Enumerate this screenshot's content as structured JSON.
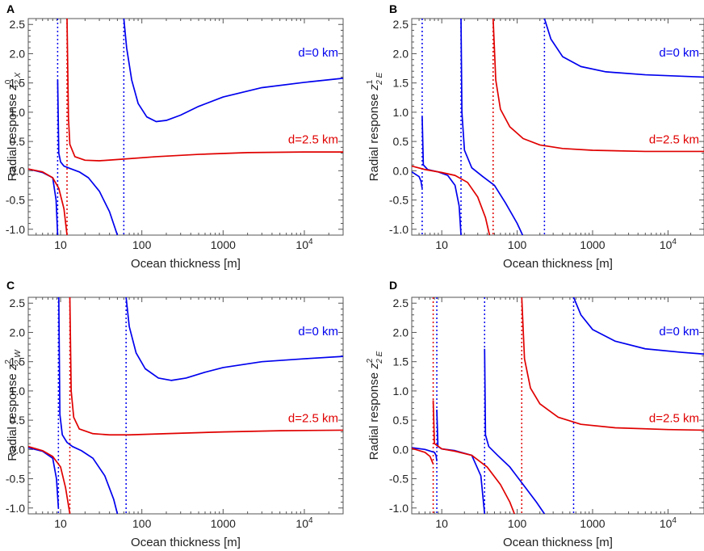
{
  "colors": {
    "d0": "#0000ee",
    "d25": "#e00000",
    "axis": "#555555"
  },
  "chart_data": [
    {
      "panel": "A",
      "type": "line",
      "ylabel_prefix": "Radial response ",
      "ylabel_sym": "z",
      "ylabel_sup": "0",
      "ylabel_sub": "2 X",
      "xlabel": "Ocean thickness [m]",
      "xscale": "log",
      "xlim": [
        4,
        30000
      ],
      "ylim": [
        -1.1,
        2.6
      ],
      "xticks": [
        {
          "v": 10,
          "t": "10"
        },
        {
          "v": 100,
          "t": "100"
        },
        {
          "v": 1000,
          "t": "1000"
        },
        {
          "v": 10000,
          "t": "10",
          "sup": "4"
        }
      ],
      "yticks": [
        "-1.0",
        "-0.5",
        "0.0",
        "0.5",
        "1.0",
        "1.5",
        "2.0",
        "2.5"
      ],
      "series": [
        {
          "name": "d=0 km",
          "label_value": 1.95,
          "asymptotes": [
            9.2,
            60
          ],
          "segments": [
            [
              [
                4,
                0.03
              ],
              [
                6,
                -0.03
              ],
              [
                8,
                -0.12
              ],
              [
                8.8,
                -0.5
              ],
              [
                9.2,
                -1.1
              ]
            ],
            [
              [
                9.2,
                1.55
              ],
              [
                9.5,
                0.3
              ],
              [
                10,
                0.15
              ],
              [
                11,
                0.08
              ],
              [
                13,
                0.04
              ],
              [
                17,
                -0.02
              ],
              [
                22,
                -0.12
              ],
              [
                30,
                -0.35
              ],
              [
                40,
                -0.7
              ],
              [
                50,
                -1.1
              ]
            ],
            [
              [
                60,
                2.6
              ],
              [
                65,
                2.1
              ],
              [
                75,
                1.55
              ],
              [
                90,
                1.15
              ],
              [
                115,
                0.92
              ],
              [
                150,
                0.84
              ],
              [
                200,
                0.86
              ],
              [
                300,
                0.95
              ],
              [
                500,
                1.1
              ],
              [
                1000,
                1.26
              ],
              [
                3000,
                1.42
              ],
              [
                10000,
                1.51
              ],
              [
                30000,
                1.58
              ]
            ]
          ]
        },
        {
          "name": "d=2.5 km",
          "label_value": 0.47,
          "asymptotes": [
            12
          ],
          "segments": [
            [
              [
                4,
                0.03
              ],
              [
                6,
                -0.02
              ],
              [
                8,
                -0.12
              ],
              [
                9.5,
                -0.3
              ],
              [
                11,
                -0.65
              ],
              [
                12,
                -1.1
              ]
            ],
            [
              [
                12,
                2.6
              ],
              [
                12.5,
                0.9
              ],
              [
                13,
                0.45
              ],
              [
                15,
                0.24
              ],
              [
                20,
                0.18
              ],
              [
                30,
                0.17
              ],
              [
                60,
                0.2
              ],
              [
                150,
                0.24
              ],
              [
                500,
                0.28
              ],
              [
                2000,
                0.31
              ],
              [
                10000,
                0.32
              ],
              [
                30000,
                0.32
              ]
            ]
          ]
        }
      ]
    },
    {
      "panel": "B",
      "type": "line",
      "ylabel_prefix": "Radial response ",
      "ylabel_sym": "z",
      "ylabel_sup": "1",
      "ylabel_sub": "2 E",
      "xlabel": "Ocean thickness [m]",
      "xscale": "log",
      "xlim": [
        4,
        30000
      ],
      "ylim": [
        -1.1,
        2.6
      ],
      "xticks": [
        {
          "v": 10,
          "t": "10"
        },
        {
          "v": 100,
          "t": "100"
        },
        {
          "v": 1000,
          "t": "1000"
        },
        {
          "v": 10000,
          "t": "10",
          "sup": "4"
        }
      ],
      "yticks": [
        "-1.0",
        "-0.5",
        "0.0",
        "0.5",
        "1.0",
        "1.5",
        "2.0",
        "2.5"
      ],
      "series": [
        {
          "name": "d=0 km",
          "label_value": 1.95,
          "asymptotes": [
            5.5,
            18,
            230
          ],
          "segments": [
            [
              [
                4,
                -0.02
              ],
              [
                5,
                -0.1
              ],
              [
                5.3,
                -0.18
              ],
              [
                5.5,
                -0.3
              ]
            ],
            [
              [
                5.5,
                0.92
              ],
              [
                5.7,
                0.1
              ],
              [
                6.5,
                0.02
              ],
              [
                9,
                -0.02
              ],
              [
                12,
                -0.08
              ],
              [
                15,
                -0.25
              ],
              [
                17,
                -0.6
              ],
              [
                18,
                -1.1
              ]
            ],
            [
              [
                18,
                2.6
              ],
              [
                18.5,
                1.0
              ],
              [
                20,
                0.35
              ],
              [
                25,
                0.05
              ],
              [
                35,
                -0.1
              ],
              [
                50,
                -0.25
              ],
              [
                70,
                -0.55
              ],
              [
                100,
                -0.9
              ],
              [
                118,
                -1.1
              ]
            ],
            [
              [
                230,
                2.6
              ],
              [
                280,
                2.25
              ],
              [
                400,
                1.95
              ],
              [
                700,
                1.78
              ],
              [
                1500,
                1.69
              ],
              [
                5000,
                1.64
              ],
              [
                30000,
                1.6
              ]
            ]
          ]
        },
        {
          "name": "d=2.5 km",
          "label_value": 0.47,
          "asymptotes": [
            48
          ],
          "segments": [
            [
              [
                4,
                0.08
              ],
              [
                6,
                0.02
              ],
              [
                10,
                -0.03
              ],
              [
                15,
                -0.08
              ],
              [
                22,
                -0.2
              ],
              [
                30,
                -0.45
              ],
              [
                38,
                -0.8
              ],
              [
                43,
                -1.1
              ]
            ],
            [
              [
                48,
                2.6
              ],
              [
                52,
                1.55
              ],
              [
                60,
                1.05
              ],
              [
                80,
                0.75
              ],
              [
                120,
                0.55
              ],
              [
                200,
                0.44
              ],
              [
                400,
                0.38
              ],
              [
                1000,
                0.35
              ],
              [
                5000,
                0.33
              ],
              [
                30000,
                0.33
              ]
            ]
          ]
        }
      ]
    },
    {
      "panel": "C",
      "type": "line",
      "ylabel_prefix": "Radial response ",
      "ylabel_sym": "z",
      "ylabel_sup": "2",
      "ylabel_sub": "2 W",
      "xlabel": "Ocean thickness [m]",
      "xscale": "log",
      "xlim": [
        4,
        30000
      ],
      "ylim": [
        -1.1,
        2.6
      ],
      "xticks": [
        {
          "v": 10,
          "t": "10"
        },
        {
          "v": 100,
          "t": "100"
        },
        {
          "v": 1000,
          "t": "1000"
        },
        {
          "v": 10000,
          "t": "10",
          "sup": "4"
        }
      ],
      "yticks": [
        "-1.0",
        "-0.5",
        "0.0",
        "0.5",
        "1.0",
        "1.5",
        "2.0",
        "2.5"
      ],
      "series": [
        {
          "name": "d=0 km",
          "label_value": 1.95,
          "asymptotes": [
            9.4,
            64
          ],
          "segments": [
            [
              [
                4,
                0.03
              ],
              [
                6,
                -0.03
              ],
              [
                8,
                -0.15
              ],
              [
                8.9,
                -0.5
              ],
              [
                9.4,
                -1.0
              ]
            ],
            [
              [
                9.5,
                2.6
              ],
              [
                9.8,
                0.6
              ],
              [
                10.5,
                0.25
              ],
              [
                12,
                0.12
              ],
              [
                14,
                0.05
              ],
              [
                18,
                -0.02
              ],
              [
                25,
                -0.15
              ],
              [
                35,
                -0.45
              ],
              [
                45,
                -0.85
              ],
              [
                50,
                -1.1
              ]
            ],
            [
              [
                64,
                2.6
              ],
              [
                70,
                2.1
              ],
              [
                85,
                1.65
              ],
              [
                110,
                1.38
              ],
              [
                160,
                1.22
              ],
              [
                230,
                1.18
              ],
              [
                350,
                1.22
              ],
              [
                600,
                1.32
              ],
              [
                1000,
                1.4
              ],
              [
                3000,
                1.5
              ],
              [
                10000,
                1.55
              ],
              [
                30000,
                1.59
              ]
            ]
          ]
        },
        {
          "name": "d=2.5 km",
          "label_value": 0.47,
          "asymptotes": [
            13
          ],
          "segments": [
            [
              [
                4,
                0.05
              ],
              [
                6,
                -0.02
              ],
              [
                8,
                -0.12
              ],
              [
                10,
                -0.3
              ],
              [
                11.5,
                -0.65
              ],
              [
                13,
                -1.1
              ]
            ],
            [
              [
                13,
                2.6
              ],
              [
                13.5,
                1.0
              ],
              [
                14.5,
                0.55
              ],
              [
                17,
                0.35
              ],
              [
                25,
                0.27
              ],
              [
                40,
                0.25
              ],
              [
                70,
                0.25
              ],
              [
                200,
                0.27
              ],
              [
                1000,
                0.3
              ],
              [
                5000,
                0.32
              ],
              [
                30000,
                0.33
              ]
            ]
          ]
        }
      ]
    },
    {
      "panel": "D",
      "type": "line",
      "ylabel_prefix": "Radial response ",
      "ylabel_sym": "z",
      "ylabel_sup": "2",
      "ylabel_sub": "2 E",
      "xlabel": "Ocean thickness [m]",
      "xscale": "log",
      "xlim": [
        4,
        30000
      ],
      "ylim": [
        -1.1,
        2.6
      ],
      "xticks": [
        {
          "v": 10,
          "t": "10"
        },
        {
          "v": 100,
          "t": "100"
        },
        {
          "v": 1000,
          "t": "1000"
        },
        {
          "v": 10000,
          "t": "10",
          "sup": "4"
        }
      ],
      "yticks": [
        "-1.0",
        "-0.5",
        "0.0",
        "0.5",
        "1.0",
        "1.5",
        "2.0",
        "2.5"
      ],
      "series": [
        {
          "name": "d=0 km",
          "label_value": 1.95,
          "asymptotes": [
            8.6,
            37,
            560
          ],
          "segments": [
            [
              [
                4,
                0.03
              ],
              [
                6,
                0.0
              ],
              [
                8,
                -0.05
              ],
              [
                8.4,
                -0.1
              ],
              [
                8.6,
                -0.2
              ]
            ],
            [
              [
                8.6,
                0.68
              ],
              [
                8.9,
                0.05
              ],
              [
                10,
                0.01
              ],
              [
                15,
                -0.02
              ],
              [
                25,
                -0.1
              ],
              [
                33,
                -0.45
              ],
              [
                37,
                -1.1
              ]
            ],
            [
              [
                37,
                1.72
              ],
              [
                38,
                0.25
              ],
              [
                42,
                0.05
              ],
              [
                55,
                -0.1
              ],
              [
                80,
                -0.3
              ],
              [
                120,
                -0.6
              ],
              [
                180,
                -0.9
              ],
              [
                230,
                -1.1
              ]
            ],
            [
              [
                560,
                2.6
              ],
              [
                700,
                2.3
              ],
              [
                1000,
                2.05
              ],
              [
                2000,
                1.85
              ],
              [
                5000,
                1.72
              ],
              [
                15000,
                1.66
              ],
              [
                30000,
                1.63
              ]
            ]
          ]
        },
        {
          "name": "d=2.5 km",
          "label_value": 0.47,
          "asymptotes": [
            7.7,
            115
          ],
          "segments": [
            [
              [
                4,
                0.02
              ],
              [
                6,
                -0.05
              ],
              [
                7,
                -0.12
              ],
              [
                7.7,
                -0.25
              ]
            ],
            [
              [
                7.7,
                0.84
              ],
              [
                8,
                0.1
              ],
              [
                10,
                0.01
              ],
              [
                15,
                -0.03
              ],
              [
                25,
                -0.1
              ],
              [
                40,
                -0.3
              ],
              [
                60,
                -0.6
              ],
              [
                80,
                -0.9
              ],
              [
                92,
                -1.1
              ]
            ],
            [
              [
                115,
                2.6
              ],
              [
                125,
                1.55
              ],
              [
                150,
                1.05
              ],
              [
                200,
                0.78
              ],
              [
                350,
                0.55
              ],
              [
                700,
                0.43
              ],
              [
                2000,
                0.37
              ],
              [
                10000,
                0.34
              ],
              [
                30000,
                0.33
              ]
            ]
          ]
        }
      ]
    }
  ]
}
